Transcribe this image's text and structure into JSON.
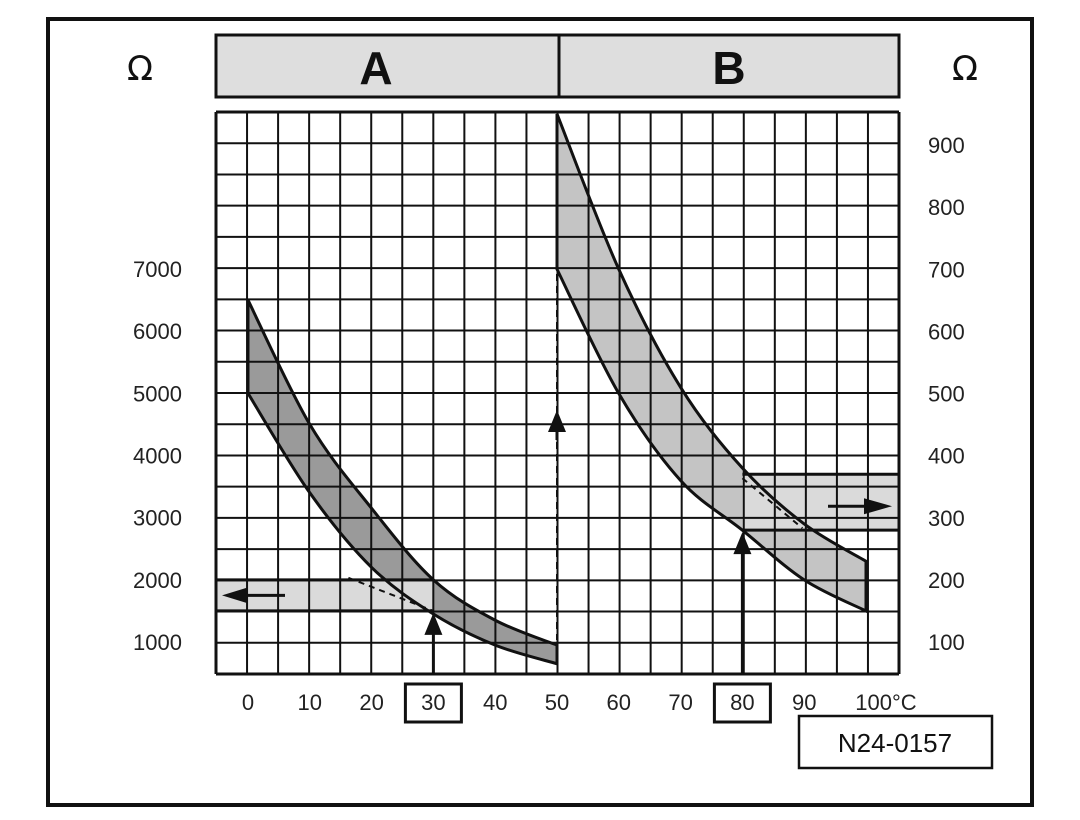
{
  "chart_data": {
    "type": "line",
    "panels": [
      {
        "header": "A",
        "unit_label": "Ω",
        "y_ticks": [
          1000,
          2000,
          3000,
          4000,
          5000,
          6000,
          7000
        ],
        "x_ticks": [
          0,
          10,
          20,
          30,
          40,
          50
        ],
        "upper_curve": [
          [
            0,
            6500
          ],
          [
            10,
            4500
          ],
          [
            20,
            3150
          ],
          [
            30,
            2000
          ],
          [
            40,
            1350
          ],
          [
            50,
            950
          ]
        ],
        "lower_curve": [
          [
            0,
            5000
          ],
          [
            10,
            3400
          ],
          [
            20,
            2200
          ],
          [
            30,
            1450
          ],
          [
            40,
            950
          ],
          [
            50,
            650
          ]
        ],
        "marked_x": 30,
        "readout_band": [
          1500,
          2000
        ],
        "arrow": "left"
      },
      {
        "header": "B",
        "unit_label": "Ω",
        "y_ticks": [
          100,
          200,
          300,
          400,
          500,
          600,
          700,
          800,
          900
        ],
        "x_ticks": [
          50,
          60,
          70,
          80,
          90
        ],
        "x_last_label": "100°C",
        "upper_curve": [
          [
            50,
            950
          ],
          [
            60,
            700
          ],
          [
            70,
            510
          ],
          [
            80,
            380
          ],
          [
            90,
            290
          ],
          [
            100,
            230
          ]
        ],
        "lower_curve": [
          [
            50,
            700
          ],
          [
            60,
            500
          ],
          [
            70,
            360
          ],
          [
            80,
            280
          ],
          [
            90,
            200
          ],
          [
            100,
            150
          ]
        ],
        "marked_x": 80,
        "readout_band": [
          280,
          370
        ],
        "arrow": "right"
      }
    ],
    "annotation": "N24-0157"
  }
}
